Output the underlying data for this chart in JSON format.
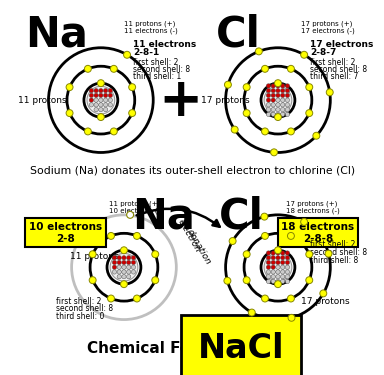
{
  "bg_color": "#ffffff",
  "title_text": "Sodium (Na) donates its outer-shell electron to chlorine (Cl)",
  "chemical_formula_label": "Chemical Formula:",
  "chemical_formula": "NaCl",
  "na_label": "Na",
  "cl_label": "Cl",
  "na_label2": "Na",
  "cl_label2": "Cl",
  "electron_box_na": "10 electrons\n2-8",
  "electron_box_cl": "18 electrons\n2-8-8",
  "yellow": "#FFFF00",
  "top_na_annotations": [
    "11 protons (+)",
    "11 electrons (-)"
  ],
  "top_cl_annotations": [
    "17 protons (+)",
    "17 electrons (-)"
  ],
  "bot_na_annotations": [
    "11 protons (+)",
    "10 electrons (-)"
  ],
  "bot_cl_annotations": [
    "17 protons (+)",
    "18 electrons (-)"
  ],
  "na_info": [
    "11 electrons",
    "2-8-1",
    "first shell: 2",
    "second shell: 8",
    "third shell: 1"
  ],
  "cl_info": [
    "17 electrons",
    "2-8-7",
    "first shell: 2",
    "second shell: 8",
    "third shell: 7"
  ],
  "na_protons_label": "11 protons",
  "cl_protons_label": "17 protons",
  "na2_protons_label": "11 protons",
  "cl2_protons_label": "17 protons",
  "bot_na_info": [
    "first shell: 2",
    "second shell: 8",
    "third shell: 0"
  ],
  "bot_cl_info": [
    "first shell: 2",
    "second shell: 8",
    "third shell: 8"
  ],
  "electron_text": "electron",
  "donation_text": "donation"
}
